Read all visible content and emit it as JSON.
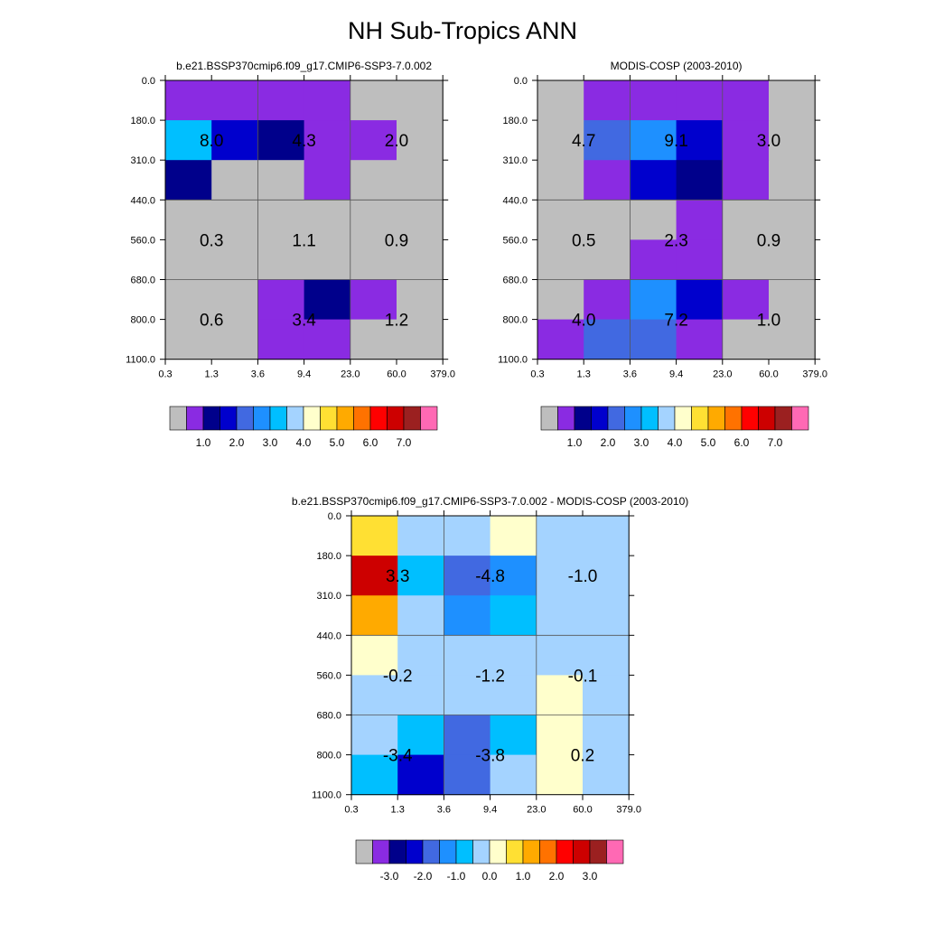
{
  "page": {
    "title": "NH Sub-Tropics ANN"
  },
  "colors": {
    "missing": "#bebebe",
    "abs_palette": [
      "#bebebe",
      "#8a2be2",
      "#00008b",
      "#0000cd",
      "#4169e1",
      "#1e90ff",
      "#00bfff",
      "#a4d3ff",
      "#ffffcc",
      "#ffe033",
      "#ffaa00",
      "#ff7200",
      "#ff0000",
      "#cd0000",
      "#9b2020",
      "#ff69b4"
    ],
    "diff_palette": [
      "#bebebe",
      "#8a2be2",
      "#00008b",
      "#0000cd",
      "#4169e1",
      "#1e90ff",
      "#00bfff",
      "#a4d3ff",
      "#ffffcc",
      "#ffe033",
      "#ffaa00",
      "#ff7200",
      "#ff0000",
      "#cd0000",
      "#9b2020",
      "#ff69b4"
    ]
  },
  "chart_data": [
    {
      "type": "heatmap",
      "id": "model",
      "title": "b.e21.BSSP370cmip6.f09_g17.CMIP6-SSP3-7.0.002",
      "x_ticks": [
        "0.3",
        "1.3",
        "3.6",
        "9.4",
        "23.0",
        "60.0",
        "379.0"
      ],
      "y_ticks": [
        "0.0",
        "180.0",
        "310.0",
        "440.0",
        "560.0",
        "680.0",
        "800.0",
        "1100.0"
      ],
      "cell_color_index": [
        [
          1,
          1,
          1,
          1,
          0,
          0
        ],
        [
          6,
          3,
          2,
          1,
          1,
          0
        ],
        [
          2,
          0,
          0,
          1,
          0,
          0
        ],
        [
          0,
          0,
          0,
          0,
          0,
          0
        ],
        [
          0,
          0,
          0,
          0,
          0,
          0
        ],
        [
          0,
          0,
          1,
          2,
          1,
          0
        ],
        [
          0,
          0,
          1,
          1,
          0,
          0
        ]
      ],
      "annotations": [
        {
          "row": 1,
          "col": 0,
          "text": "8.0"
        },
        {
          "row": 1,
          "col": 1,
          "text": "4.3"
        },
        {
          "row": 1,
          "col": 2,
          "text": "2.0"
        },
        {
          "row": 4,
          "col": 0,
          "text": "0.3"
        },
        {
          "row": 4,
          "col": 1,
          "text": "1.1"
        },
        {
          "row": 4,
          "col": 2,
          "text": "0.9"
        },
        {
          "row": 6,
          "col": 0,
          "text": "0.6"
        },
        {
          "row": 6,
          "col": 1,
          "text": "3.4"
        },
        {
          "row": 6,
          "col": 2,
          "text": "1.2"
        }
      ],
      "colorbar": {
        "palette": "abs_palette",
        "labels": [
          "1.0",
          "2.0",
          "3.0",
          "4.0",
          "5.0",
          "6.0",
          "7.0"
        ]
      }
    },
    {
      "type": "heatmap",
      "id": "obs",
      "title": "MODIS-COSP (2003-2010)",
      "x_ticks": [
        "0.3",
        "1.3",
        "3.6",
        "9.4",
        "23.0",
        "60.0",
        "379.0"
      ],
      "y_ticks": [
        "0.0",
        "180.0",
        "310.0",
        "440.0",
        "560.0",
        "680.0",
        "800.0",
        "1100.0"
      ],
      "cell_color_index": [
        [
          0,
          1,
          1,
          1,
          1,
          0
        ],
        [
          0,
          4,
          5,
          3,
          1,
          0
        ],
        [
          0,
          1,
          3,
          2,
          1,
          0
        ],
        [
          0,
          0,
          0,
          1,
          0,
          0
        ],
        [
          0,
          0,
          1,
          1,
          0,
          0
        ],
        [
          0,
          1,
          5,
          3,
          1,
          0
        ],
        [
          1,
          4,
          4,
          1,
          0,
          0
        ]
      ],
      "annotations": [
        {
          "row": 1,
          "col": 0,
          "text": "4.7"
        },
        {
          "row": 1,
          "col": 1,
          "text": "9.1"
        },
        {
          "row": 1,
          "col": 2,
          "text": "3.0"
        },
        {
          "row": 4,
          "col": 0,
          "text": "0.5"
        },
        {
          "row": 4,
          "col": 1,
          "text": "2.3"
        },
        {
          "row": 4,
          "col": 2,
          "text": "0.9"
        },
        {
          "row": 6,
          "col": 0,
          "text": "4.0"
        },
        {
          "row": 6,
          "col": 1,
          "text": "7.2"
        },
        {
          "row": 6,
          "col": 2,
          "text": "1.0"
        }
      ],
      "colorbar": {
        "palette": "abs_palette",
        "labels": [
          "1.0",
          "2.0",
          "3.0",
          "4.0",
          "5.0",
          "6.0",
          "7.0"
        ]
      }
    },
    {
      "type": "heatmap",
      "id": "diff",
      "title": "b.e21.BSSP370cmip6.f09_g17.CMIP6-SSP3-7.0.002 - MODIS-COSP (2003-2010)",
      "x_ticks": [
        "0.3",
        "1.3",
        "3.6",
        "9.4",
        "23.0",
        "60.0",
        "379.0"
      ],
      "y_ticks": [
        "0.0",
        "180.0",
        "310.0",
        "440.0",
        "560.0",
        "680.0",
        "800.0",
        "1100.0"
      ],
      "cell_color_index": [
        [
          9,
          7,
          7,
          8,
          7,
          7
        ],
        [
          13,
          6,
          4,
          5,
          7,
          7
        ],
        [
          10,
          7,
          5,
          6,
          7,
          7
        ],
        [
          8,
          7,
          7,
          7,
          7,
          7
        ],
        [
          7,
          7,
          7,
          7,
          8,
          7
        ],
        [
          7,
          6,
          4,
          6,
          8,
          7
        ],
        [
          6,
          3,
          4,
          7,
          8,
          7
        ]
      ],
      "annotations": [
        {
          "row": 1,
          "col": 0,
          "text": "3.3"
        },
        {
          "row": 1,
          "col": 1,
          "text": "-4.8"
        },
        {
          "row": 1,
          "col": 2,
          "text": "-1.0"
        },
        {
          "row": 4,
          "col": 0,
          "text": "-0.2"
        },
        {
          "row": 4,
          "col": 1,
          "text": "-1.2"
        },
        {
          "row": 4,
          "col": 2,
          "text": "-0.1"
        },
        {
          "row": 6,
          "col": 0,
          "text": "-3.4"
        },
        {
          "row": 6,
          "col": 1,
          "text": "-3.8"
        },
        {
          "row": 6,
          "col": 2,
          "text": "0.2"
        }
      ],
      "colorbar": {
        "palette": "diff_palette",
        "labels": [
          "-3.0",
          "-2.0",
          "-1.0",
          "0.0",
          "1.0",
          "2.0",
          "3.0"
        ]
      }
    }
  ]
}
